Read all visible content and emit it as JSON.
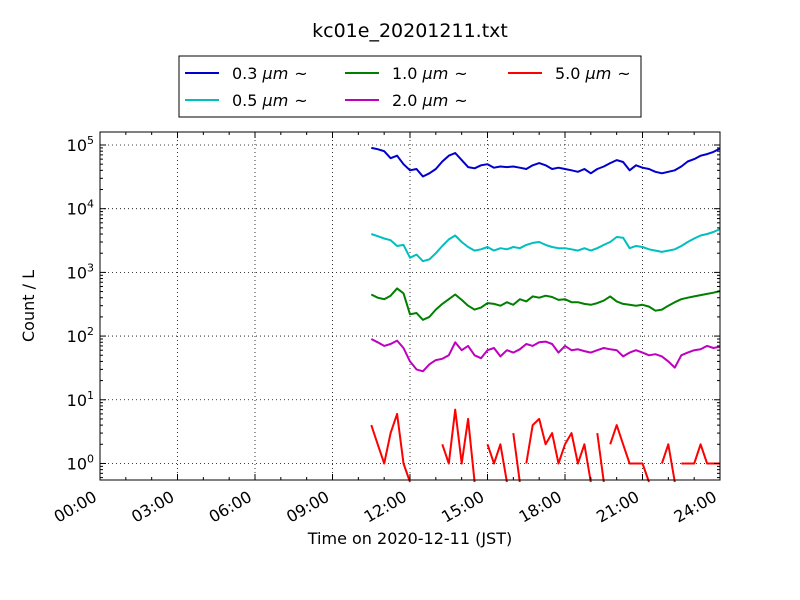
{
  "chart_data": {
    "type": "line",
    "title": "kc01e_20201211.txt",
    "xlabel": "Time on 2020-12-11 (JST)",
    "ylabel": "Count / L",
    "xlim": [
      "00:00",
      "24:00"
    ],
    "ylim": [
      0.55,
      160000
    ],
    "yscale": "log",
    "grid": true,
    "legend_placement": "top-center",
    "x_ticks": [
      "00:00",
      "03:00",
      "06:00",
      "09:00",
      "12:00",
      "15:00",
      "18:00",
      "21:00",
      "24:00"
    ],
    "x_tick_hours": [
      0,
      3,
      6,
      9,
      12,
      15,
      18,
      21,
      24
    ],
    "y_ticks": [
      {
        "value": 1,
        "base": "10",
        "exp": "0"
      },
      {
        "value": 10,
        "base": "10",
        "exp": "1"
      },
      {
        "value": 100,
        "base": "10",
        "exp": "2"
      },
      {
        "value": 1000,
        "base": "10",
        "exp": "3"
      },
      {
        "value": 10000,
        "base": "10",
        "exp": "4"
      },
      {
        "value": 100000,
        "base": "10",
        "exp": "5"
      }
    ],
    "series": [
      {
        "name": "0.3 µm ~",
        "name_size": "0.3",
        "name_unit": "µm",
        "name_suffix": "~",
        "color": "#0000cc",
        "x": [
          10.5,
          10.75,
          11.0,
          11.25,
          11.5,
          11.75,
          12.0,
          12.25,
          12.5,
          12.75,
          13.0,
          13.25,
          13.5,
          13.75,
          14.0,
          14.25,
          14.5,
          14.75,
          15.0,
          15.25,
          15.5,
          15.75,
          16.0,
          16.25,
          16.5,
          16.75,
          17.0,
          17.25,
          17.5,
          17.75,
          18.0,
          18.25,
          18.5,
          18.75,
          19.0,
          19.25,
          19.5,
          19.75,
          20.0,
          20.25,
          20.5,
          20.75,
          21.0,
          21.25,
          21.5,
          21.75,
          22.0,
          22.25,
          22.5,
          22.75,
          23.0,
          23.25,
          23.5,
          23.75,
          24.0
        ],
        "y": [
          90000,
          86000,
          80000,
          62000,
          68000,
          50000,
          40000,
          42000,
          32000,
          36000,
          42000,
          55000,
          68000,
          75000,
          58000,
          45000,
          43000,
          48000,
          50000,
          44000,
          46000,
          45000,
          46000,
          44000,
          42000,
          48000,
          52000,
          48000,
          42000,
          44000,
          42000,
          40000,
          38000,
          42000,
          36000,
          42000,
          46000,
          52000,
          58000,
          54000,
          40000,
          48000,
          44000,
          42000,
          38000,
          36000,
          38000,
          40000,
          46000,
          55000,
          60000,
          68000,
          72000,
          78000,
          88000
        ]
      },
      {
        "name": "0.5 µm ~",
        "name_size": "0.5",
        "name_unit": "µm",
        "name_suffix": "~",
        "color": "#00bfbf",
        "x": [
          10.5,
          10.75,
          11.0,
          11.25,
          11.5,
          11.75,
          12.0,
          12.25,
          12.5,
          12.75,
          13.0,
          13.25,
          13.5,
          13.75,
          14.0,
          14.25,
          14.5,
          14.75,
          15.0,
          15.25,
          15.5,
          15.75,
          16.0,
          16.25,
          16.5,
          16.75,
          17.0,
          17.25,
          17.5,
          17.75,
          18.0,
          18.25,
          18.5,
          18.75,
          19.0,
          19.25,
          19.5,
          19.75,
          20.0,
          20.25,
          20.5,
          20.75,
          21.0,
          21.25,
          21.5,
          21.75,
          22.0,
          22.25,
          22.5,
          22.75,
          23.0,
          23.25,
          23.5,
          23.75,
          24.0
        ],
        "y": [
          4000,
          3700,
          3400,
          3200,
          2600,
          2700,
          1700,
          1900,
          1500,
          1600,
          2000,
          2600,
          3300,
          3800,
          3000,
          2500,
          2200,
          2300,
          2500,
          2200,
          2400,
          2300,
          2500,
          2400,
          2700,
          2900,
          3000,
          2700,
          2500,
          2400,
          2400,
          2300,
          2200,
          2400,
          2200,
          2400,
          2700,
          3000,
          3600,
          3500,
          2400,
          2600,
          2500,
          2300,
          2200,
          2100,
          2200,
          2300,
          2600,
          3000,
          3400,
          3800,
          4000,
          4300,
          4800
        ]
      },
      {
        "name": "1.0 µm ~",
        "name_size": "1.0",
        "name_unit": "µm",
        "name_suffix": "~",
        "color": "#007f00",
        "x": [
          10.5,
          10.75,
          11.0,
          11.25,
          11.5,
          11.75,
          12.0,
          12.25,
          12.5,
          12.75,
          13.0,
          13.25,
          13.5,
          13.75,
          14.0,
          14.25,
          14.5,
          14.75,
          15.0,
          15.25,
          15.5,
          15.75,
          16.0,
          16.25,
          16.5,
          16.75,
          17.0,
          17.25,
          17.5,
          17.75,
          18.0,
          18.25,
          18.5,
          18.75,
          19.0,
          19.25,
          19.5,
          19.75,
          20.0,
          20.25,
          20.5,
          20.75,
          21.0,
          21.25,
          21.5,
          21.75,
          22.0,
          22.25,
          22.5,
          22.75,
          23.0,
          23.25,
          23.5,
          23.75,
          24.0
        ],
        "y": [
          450,
          400,
          380,
          430,
          560,
          470,
          220,
          230,
          180,
          200,
          260,
          320,
          380,
          450,
          370,
          300,
          260,
          280,
          330,
          320,
          300,
          340,
          310,
          380,
          350,
          420,
          400,
          430,
          410,
          370,
          380,
          340,
          340,
          320,
          310,
          330,
          360,
          420,
          350,
          320,
          310,
          300,
          310,
          290,
          250,
          260,
          300,
          340,
          380,
          400,
          420,
          440,
          460,
          480,
          510
        ]
      },
      {
        "name": "2.0 µm ~",
        "name_size": "2.0",
        "name_unit": "µm",
        "name_suffix": "~",
        "color": "#bf00bf",
        "x": [
          10.5,
          10.75,
          11.0,
          11.25,
          11.5,
          11.75,
          12.0,
          12.25,
          12.5,
          12.75,
          13.0,
          13.25,
          13.5,
          13.75,
          14.0,
          14.25,
          14.5,
          14.75,
          15.0,
          15.25,
          15.5,
          15.75,
          16.0,
          16.25,
          16.5,
          16.75,
          17.0,
          17.25,
          17.5,
          17.75,
          18.0,
          18.25,
          18.5,
          18.75,
          19.0,
          19.25,
          19.5,
          19.75,
          20.0,
          20.25,
          20.5,
          20.75,
          21.0,
          21.25,
          21.5,
          21.75,
          22.0,
          22.25,
          22.5,
          22.75,
          23.0,
          23.25,
          23.5,
          23.75,
          24.0
        ],
        "y": [
          90,
          80,
          70,
          75,
          85,
          65,
          40,
          30,
          28,
          36,
          42,
          44,
          50,
          80,
          60,
          70,
          50,
          45,
          60,
          65,
          48,
          60,
          55,
          62,
          75,
          70,
          80,
          82,
          75,
          55,
          70,
          60,
          62,
          58,
          55,
          60,
          65,
          62,
          60,
          48,
          55,
          60,
          55,
          50,
          52,
          48,
          40,
          32,
          50,
          55,
          60,
          62,
          70,
          65,
          68
        ]
      },
      {
        "name": "5.0 µm ~",
        "name_size": "5.0",
        "name_unit": "µm",
        "name_suffix": "~",
        "color": "#ff0000",
        "x": [
          10.5,
          10.75,
          11.0,
          11.25,
          11.5,
          11.75,
          12.0,
          12.25,
          12.5,
          12.75,
          13.0,
          13.25,
          13.5,
          13.75,
          14.0,
          14.25,
          14.5,
          14.75,
          15.0,
          15.25,
          15.5,
          15.75,
          16.0,
          16.25,
          16.5,
          16.75,
          17.0,
          17.25,
          17.5,
          17.75,
          18.0,
          18.25,
          18.5,
          18.75,
          19.0,
          19.25,
          19.5,
          19.75,
          20.0,
          20.25,
          20.5,
          20.75,
          21.0,
          21.25,
          21.5,
          21.75,
          22.0,
          22.25,
          22.5,
          22.75,
          23.0,
          23.25,
          23.5,
          23.75,
          24.0
        ],
        "y": [
          4,
          2,
          1,
          3,
          6,
          1,
          0,
          0,
          0,
          0,
          0,
          2,
          1,
          7,
          1,
          5,
          0,
          0,
          2,
          1,
          2,
          0,
          3,
          0,
          1,
          4,
          5,
          2,
          3,
          1,
          2,
          3,
          1,
          2,
          0,
          3,
          0,
          2,
          4,
          2,
          1,
          1,
          1,
          0,
          0,
          1,
          2,
          0,
          1,
          1,
          1,
          2,
          1,
          1,
          1
        ]
      }
    ]
  }
}
